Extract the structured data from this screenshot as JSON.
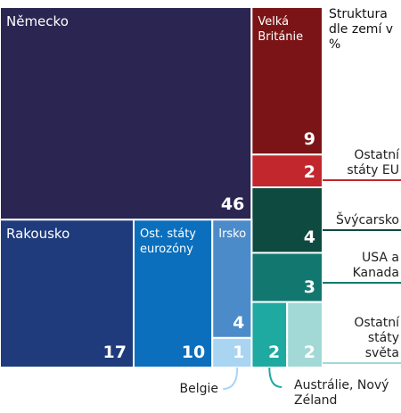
{
  "chart_data": {
    "type": "treemap",
    "title": "Struktura dle zemí v %",
    "categories": [
      "Německo",
      "Velká Británie",
      "Ostatní státy EU",
      "Švýcarsko",
      "USA a Kanada",
      "Austrálie, Nový Zéland",
      "Ostatní státy světa",
      "Rakousko",
      "Ost. státy eurozóny",
      "Irsko",
      "Belgie"
    ],
    "values": [
      46,
      9,
      2,
      4,
      3,
      2,
      2,
      17,
      10,
      4,
      1
    ],
    "colors": [
      "#2b2552",
      "#7b1416",
      "#c1272d",
      "#0e4a40",
      "#12786f",
      "#1ea9a1",
      "#a2d9d6",
      "#1f3b7c",
      "#0b6fbd",
      "#4c8bc9",
      "#a9d5f3"
    ]
  }
}
